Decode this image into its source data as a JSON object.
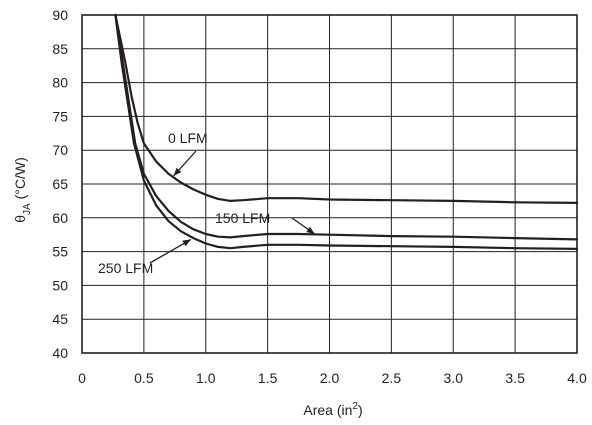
{
  "chart_data": {
    "type": "line",
    "x_axis": {
      "label": "Area (in",
      "label_sup": "2",
      "label_close": ")",
      "range": [
        0,
        4.0
      ],
      "ticks": [
        0,
        0.5,
        1.0,
        1.5,
        2.0,
        2.5,
        3.0,
        3.5,
        4.0
      ],
      "tick_labels": [
        "0",
        "0.5",
        "1.0",
        "1.5",
        "2.0",
        "2.5",
        "3.0",
        "3.5",
        "4.0"
      ]
    },
    "y_axis": {
      "label_symbol": "θ",
      "label_sub": "JA",
      "label_rest": " (°C/W)",
      "range": [
        40,
        90
      ],
      "ticks": [
        40,
        45,
        50,
        55,
        60,
        65,
        70,
        75,
        80,
        85,
        90
      ],
      "tick_labels": [
        "40",
        "45",
        "50",
        "55",
        "60",
        "65",
        "70",
        "75",
        "80",
        "85",
        "90"
      ]
    },
    "grid": true,
    "series": [
      {
        "name": "0 LFM",
        "points": [
          [
            0.27,
            90
          ],
          [
            0.35,
            83
          ],
          [
            0.4,
            78
          ],
          [
            0.45,
            74
          ],
          [
            0.5,
            71
          ],
          [
            0.6,
            68.3
          ],
          [
            0.7,
            66.5
          ],
          [
            0.8,
            65.2
          ],
          [
            0.9,
            64.2
          ],
          [
            1.0,
            63.4
          ],
          [
            1.1,
            62.8
          ],
          [
            1.2,
            62.5
          ],
          [
            1.3,
            62.6
          ],
          [
            1.5,
            62.9
          ],
          [
            1.75,
            62.9
          ],
          [
            2.0,
            62.7
          ],
          [
            2.5,
            62.6
          ],
          [
            3.0,
            62.5
          ],
          [
            3.5,
            62.3
          ],
          [
            4.0,
            62.2
          ]
        ]
      },
      {
        "name": "150 LFM",
        "points": [
          [
            0.27,
            90
          ],
          [
            0.33,
            83
          ],
          [
            0.38,
            77
          ],
          [
            0.43,
            71
          ],
          [
            0.5,
            66.5
          ],
          [
            0.6,
            63.2
          ],
          [
            0.7,
            61.0
          ],
          [
            0.8,
            59.4
          ],
          [
            0.9,
            58.3
          ],
          [
            1.0,
            57.6
          ],
          [
            1.1,
            57.2
          ],
          [
            1.2,
            57.1
          ],
          [
            1.3,
            57.3
          ],
          [
            1.5,
            57.6
          ],
          [
            1.75,
            57.6
          ],
          [
            2.0,
            57.5
          ],
          [
            2.5,
            57.3
          ],
          [
            3.0,
            57.2
          ],
          [
            3.5,
            57.0
          ],
          [
            4.0,
            56.8
          ]
        ]
      },
      {
        "name": "250 LFM",
        "points": [
          [
            0.27,
            90
          ],
          [
            0.32,
            83
          ],
          [
            0.37,
            77
          ],
          [
            0.42,
            71
          ],
          [
            0.5,
            65.5
          ],
          [
            0.6,
            61.8
          ],
          [
            0.7,
            59.5
          ],
          [
            0.8,
            58.0
          ],
          [
            0.9,
            57.0
          ],
          [
            1.0,
            56.2
          ],
          [
            1.1,
            55.7
          ],
          [
            1.2,
            55.5
          ],
          [
            1.3,
            55.7
          ],
          [
            1.5,
            56.0
          ],
          [
            1.75,
            56.0
          ],
          [
            2.0,
            55.9
          ],
          [
            2.5,
            55.8
          ],
          [
            3.0,
            55.7
          ],
          [
            3.5,
            55.5
          ],
          [
            4.0,
            55.4
          ]
        ]
      }
    ],
    "annotations": [
      {
        "text": "0 LFM",
        "series": "0 LFM",
        "point_on_curve": [
          0.74,
          66.2
        ]
      },
      {
        "text": "150 LFM",
        "series": "150 LFM",
        "point_on_curve": [
          1.88,
          57.6
        ]
      },
      {
        "text": "250 LFM",
        "series": "250 LFM",
        "point_on_curve": [
          0.88,
          56.8
        ]
      }
    ]
  }
}
